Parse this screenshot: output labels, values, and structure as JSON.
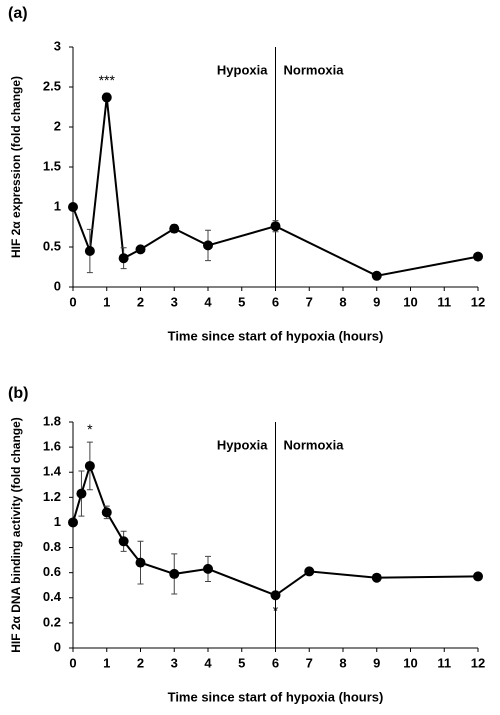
{
  "chart_data": [
    {
      "type": "line",
      "panel_label": "(a)",
      "x_label": "Time since start of hypoxia (hours)",
      "y_label": "HIF 2α expression (fold change)",
      "x": [
        0,
        0.5,
        1,
        1.5,
        2,
        3,
        4,
        6,
        9,
        12
      ],
      "series": [
        {
          "color": "#000000",
          "values": [
            1.0,
            0.45,
            2.37,
            0.36,
            0.47,
            0.73,
            0.52,
            0.76,
            0.14,
            0.38
          ],
          "errors": [
            0.03,
            0.27,
            0.05,
            0.13,
            0.03,
            0.05,
            0.19,
            0.07,
            0.02,
            0.02
          ]
        }
      ],
      "xlim": [
        0,
        12
      ],
      "xticks": [
        0,
        1,
        2,
        3,
        4,
        5,
        6,
        7,
        8,
        9,
        10,
        11,
        12
      ],
      "ylim": [
        0,
        3
      ],
      "yticks": [
        0,
        0.5,
        1,
        1.5,
        2,
        2.5,
        3
      ],
      "divider_x": 6,
      "regions": [
        "Hypoxia",
        "Normoxia"
      ],
      "annotations": [
        {
          "text": "***",
          "x": 1,
          "position": "above"
        }
      ]
    },
    {
      "type": "line",
      "panel_label": "(b)",
      "x_label": "Time since start of hypoxia (hours)",
      "y_label": "HIF 2α DNA binding activity (fold change)",
      "x": [
        0,
        0.25,
        0.5,
        1,
        1.5,
        2,
        3,
        4,
        6,
        7,
        9,
        12
      ],
      "series": [
        {
          "color": "#000000",
          "values": [
            1.0,
            1.23,
            1.45,
            1.08,
            0.85,
            0.68,
            0.59,
            0.63,
            0.42,
            0.61,
            0.56,
            0.57
          ],
          "errors": [
            0.02,
            0.18,
            0.19,
            0.05,
            0.08,
            0.17,
            0.16,
            0.1,
            0.02,
            0.02,
            0.01,
            0.01
          ]
        }
      ],
      "xlim": [
        0,
        12
      ],
      "xticks": [
        0,
        1,
        2,
        3,
        4,
        5,
        6,
        7,
        8,
        9,
        10,
        11,
        12
      ],
      "ylim": [
        0,
        1.8
      ],
      "yticks": [
        0,
        0.2,
        0.4,
        0.6,
        0.8,
        1,
        1.2,
        1.4,
        1.6,
        1.8
      ],
      "divider_x": 6,
      "regions": [
        "Hypoxia",
        "Normoxia"
      ],
      "annotations": [
        {
          "text": "*",
          "x": 0.5,
          "position": "above"
        },
        {
          "text": "*",
          "x": 6,
          "position": "below"
        }
      ]
    }
  ]
}
